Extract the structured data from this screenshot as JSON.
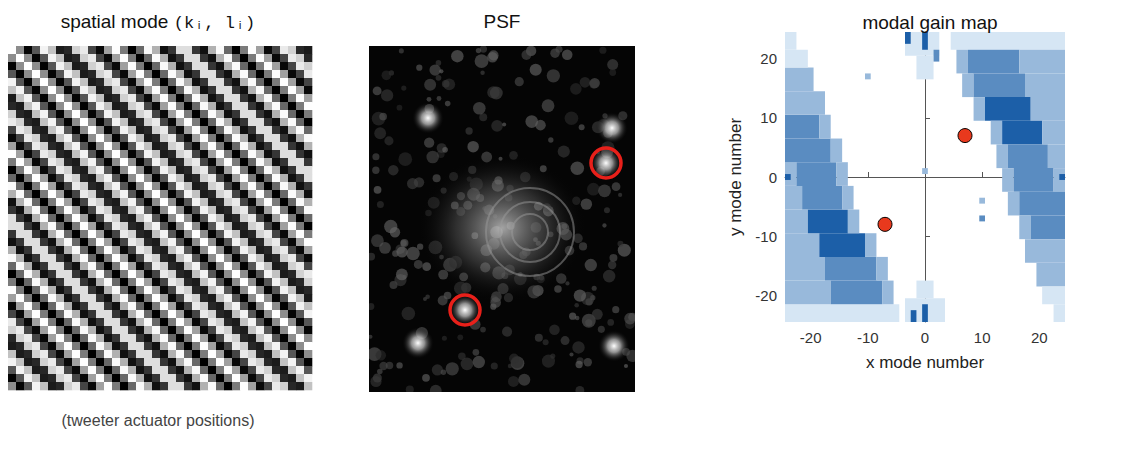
{
  "chart_data": [
    {
      "type": "image",
      "title": "spatial mode (kᵢ, lᵢ)",
      "caption": "(tweeter actuator positions)"
    },
    {
      "type": "image",
      "title": "PSF"
    },
    {
      "type": "heatmap",
      "title": "modal gain map",
      "xlabel": "x mode number",
      "ylabel": "y mode number",
      "xlim": [
        -24.5,
        24.5
      ],
      "xticks": [
        -20,
        -10,
        0,
        10,
        20
      ],
      "ylim": [
        -24.5,
        24.5
      ],
      "yticks": [
        -20,
        -10,
        0,
        10,
        20
      ],
      "color": "#1c5fa8",
      "cells": [
        [
          5,
          24,
          22,
          24,
          1
        ],
        [
          6,
          7,
          18,
          21,
          2
        ],
        [
          8,
          16,
          18,
          21,
          3
        ],
        [
          17,
          24,
          18,
          21,
          2
        ],
        [
          7,
          8,
          14,
          17,
          2
        ],
        [
          9,
          17,
          14,
          17,
          3
        ],
        [
          18,
          24,
          14,
          17,
          2
        ],
        [
          9,
          10,
          10,
          13,
          2
        ],
        [
          11,
          18,
          10,
          13,
          4
        ],
        [
          19,
          24,
          10,
          13,
          2
        ],
        [
          12,
          13,
          6,
          9,
          2
        ],
        [
          14,
          20,
          6,
          9,
          4
        ],
        [
          21,
          24,
          6,
          9,
          2
        ],
        [
          13,
          14,
          2,
          5,
          2
        ],
        [
          15,
          21,
          2,
          5,
          3
        ],
        [
          22,
          24,
          2,
          5,
          2
        ],
        [
          14,
          15,
          -2,
          1,
          2
        ],
        [
          16,
          22,
          -2,
          1,
          3
        ],
        [
          23,
          24,
          -2,
          1,
          2
        ],
        [
          15,
          16,
          -6,
          -3,
          2
        ],
        [
          17,
          24,
          -6,
          -3,
          3
        ],
        [
          17,
          18,
          -10,
          -7,
          2
        ],
        [
          19,
          24,
          -10,
          -7,
          3
        ],
        [
          18,
          24,
          -14,
          -11,
          2
        ],
        [
          20,
          24,
          -18,
          -15,
          2
        ],
        [
          21,
          24,
          -21,
          -19,
          1
        ],
        [
          23,
          24,
          -24,
          -22,
          1
        ],
        [
          -24,
          -5,
          -24,
          -22,
          1
        ],
        [
          -24,
          -17,
          -21,
          -18,
          2
        ],
        [
          -16,
          -8,
          -21,
          -18,
          3
        ],
        [
          -7,
          -6,
          -21,
          -18,
          2
        ],
        [
          -24,
          -18,
          -17,
          -14,
          2
        ],
        [
          -17,
          -9,
          -17,
          -14,
          3
        ],
        [
          -8,
          -7,
          -17,
          -14,
          2
        ],
        [
          -24,
          -19,
          -13,
          -10,
          2
        ],
        [
          -18,
          -11,
          -13,
          -10,
          4
        ],
        [
          -10,
          -9,
          -13,
          -10,
          2
        ],
        [
          -24,
          -21,
          -9,
          -6,
          2
        ],
        [
          -20,
          -14,
          -9,
          -6,
          4
        ],
        [
          -13,
          -12,
          -9,
          -6,
          2
        ],
        [
          -24,
          -22,
          -5,
          -2,
          2
        ],
        [
          -21,
          -15,
          -5,
          -2,
          3
        ],
        [
          -14,
          -13,
          -5,
          -2,
          2
        ],
        [
          -24,
          -23,
          -1,
          2,
          2
        ],
        [
          -22,
          -16,
          -1,
          2,
          3
        ],
        [
          -15,
          -14,
          -1,
          2,
          2
        ],
        [
          -24,
          -17,
          3,
          6,
          3
        ],
        [
          -16,
          -15,
          3,
          6,
          2
        ],
        [
          -24,
          -19,
          7,
          10,
          3
        ],
        [
          -18,
          -17,
          7,
          10,
          2
        ],
        [
          -24,
          -18,
          11,
          14,
          2
        ],
        [
          -24,
          -20,
          15,
          18,
          2
        ],
        [
          -24,
          -21,
          19,
          21,
          1
        ],
        [
          -24,
          -23,
          22,
          24,
          1
        ],
        [
          -3,
          2,
          21,
          24,
          1
        ],
        [
          -1,
          1,
          17,
          20,
          1
        ],
        [
          0,
          0,
          22,
          24,
          4
        ],
        [
          -3,
          -3,
          23,
          24,
          4
        ],
        [
          2,
          2,
          20,
          21,
          3
        ],
        [
          -3,
          3,
          -24,
          -21,
          1
        ],
        [
          -1,
          1,
          -20,
          -18,
          1
        ],
        [
          0,
          0,
          -24,
          -22,
          4
        ],
        [
          -2,
          -2,
          -24,
          -23,
          4
        ],
        [
          0,
          0,
          1,
          1,
          2
        ],
        [
          10,
          10,
          -4,
          -4,
          2
        ],
        [
          10,
          10,
          -7,
          -7,
          3
        ],
        [
          -10,
          -10,
          17,
          17,
          2
        ],
        [
          -24,
          -24,
          0,
          0,
          4
        ],
        [
          24,
          24,
          0,
          0,
          4
        ]
      ],
      "points": {
        "x": [
          7,
          -7
        ],
        "y": [
          7,
          -8
        ],
        "color": "#e8391d",
        "marker": "circle"
      }
    }
  ]
}
